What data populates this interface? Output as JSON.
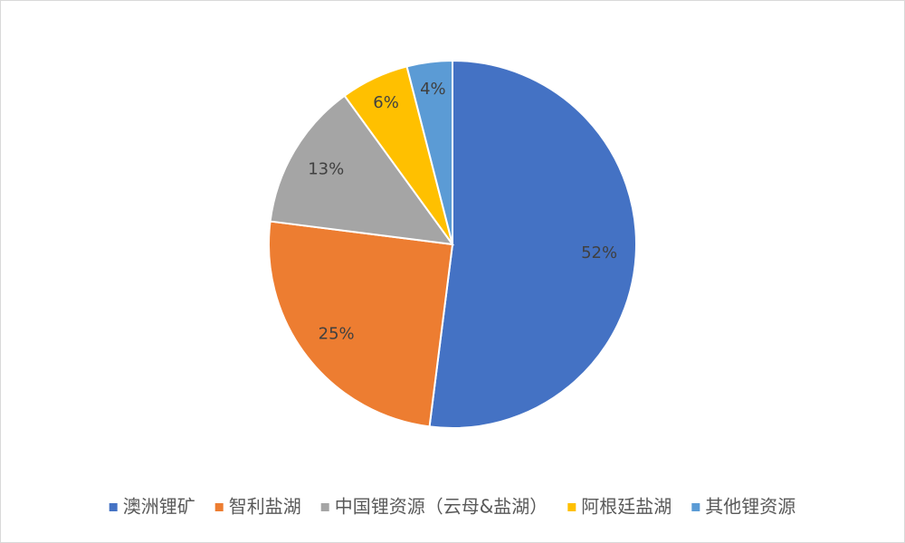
{
  "chart_data": {
    "type": "pie",
    "categories": [
      "澳洲锂矿",
      "智利盐湖",
      "中国锂资源（云母&盐湖）",
      "阿根廷盐湖",
      "其他锂资源"
    ],
    "values": [
      52,
      25,
      13,
      6,
      4
    ],
    "value_labels": [
      "52%",
      "25%",
      "13%",
      "6%",
      "4%"
    ],
    "colors": [
      "#4472c4",
      "#ed7d31",
      "#a5a5a5",
      "#ffc000",
      "#5b9bd5"
    ],
    "legend": "bottom"
  }
}
